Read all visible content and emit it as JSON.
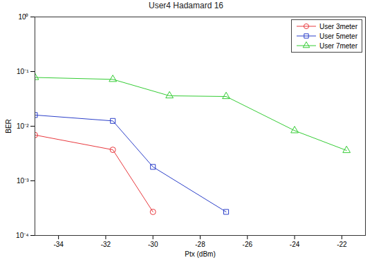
{
  "chart_data": {
    "type": "line",
    "title": "User4 Hadamard 16",
    "x_label": "Ptx (dBm)",
    "y_label": "BER",
    "log": "y",
    "grid": false,
    "legend": "top-right",
    "xlim": [
      -35,
      -21
    ],
    "xticks": [
      -34,
      -32,
      -30,
      -28,
      -26,
      -24,
      -22
    ],
    "ylim": [
      0.0001,
      1
    ],
    "yticks": [
      {
        "value": 0.0001,
        "label": "10⁻⁴"
      },
      {
        "value": 0.001,
        "label": "10⁻³"
      },
      {
        "value": 0.01,
        "label": "10⁻²"
      },
      {
        "value": 0.1,
        "label": "10⁻¹"
      },
      {
        "value": 1,
        "label": "10⁰"
      }
    ],
    "series": [
      {
        "name": "User 3meter",
        "color": "#e8383d",
        "marker": "circle",
        "x": [
          -35,
          -31.7,
          -30
        ],
        "values": [
          0.0069,
          0.0037,
          0.00027
        ]
      },
      {
        "name": "User 5meter",
        "color": "#2b3fc9",
        "marker": "square",
        "x": [
          -35,
          -31.7,
          -30,
          -26.9
        ],
        "values": [
          0.016,
          0.0125,
          0.0018,
          0.00027
        ]
      },
      {
        "name": "User 7meter",
        "color": "#33cc33",
        "marker": "triangle",
        "x": [
          -35,
          -31.7,
          -29.3,
          -26.9,
          -24.0,
          -21.8
        ],
        "values": [
          0.078,
          0.072,
          0.036,
          0.035,
          0.0083,
          0.0036
        ]
      }
    ]
  }
}
